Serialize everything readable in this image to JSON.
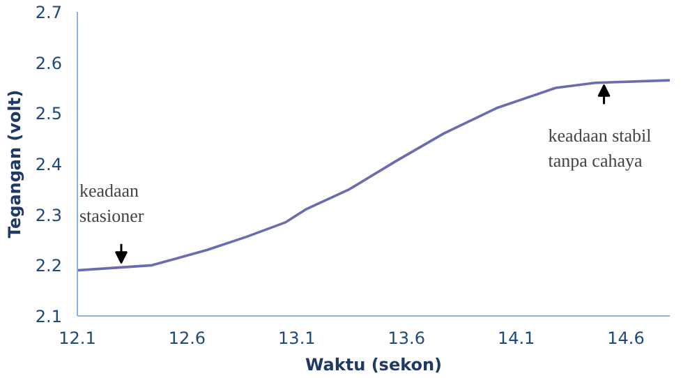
{
  "chart_data": {
    "type": "line",
    "xlabel": "Waktu (sekon)",
    "ylabel": "Tegangan (volt)",
    "x": [
      12.1,
      12.44,
      12.69,
      12.87,
      13.05,
      13.14,
      13.34,
      13.55,
      13.77,
      14.01,
      14.28,
      14.46,
      14.8
    ],
    "series": [
      {
        "color": "#6b6bb0",
        "values": [
          2.19,
          2.2,
          2.23,
          2.256,
          2.285,
          2.31,
          2.35,
          2.405,
          2.46,
          2.51,
          2.55,
          2.56,
          2.565
        ]
      }
    ],
    "xlim": [
      12.1,
      14.8
    ],
    "xticks": [
      12.1,
      12.6,
      13.1,
      13.6,
      14.1,
      14.6
    ],
    "ylim": [
      2.1,
      2.7
    ],
    "yticks": [
      2.1,
      2.2,
      2.3,
      2.4,
      2.5,
      2.6,
      2.7
    ],
    "grid": false,
    "marker": "none",
    "line_style": "solid",
    "annotations": [
      {
        "text": "keadaan\nstasioner",
        "x": 12.3,
        "y": 2.2
      },
      {
        "text": "keadaan stabil\ntanpa cahaya",
        "x": 14.5,
        "y": 2.56
      }
    ]
  }
}
